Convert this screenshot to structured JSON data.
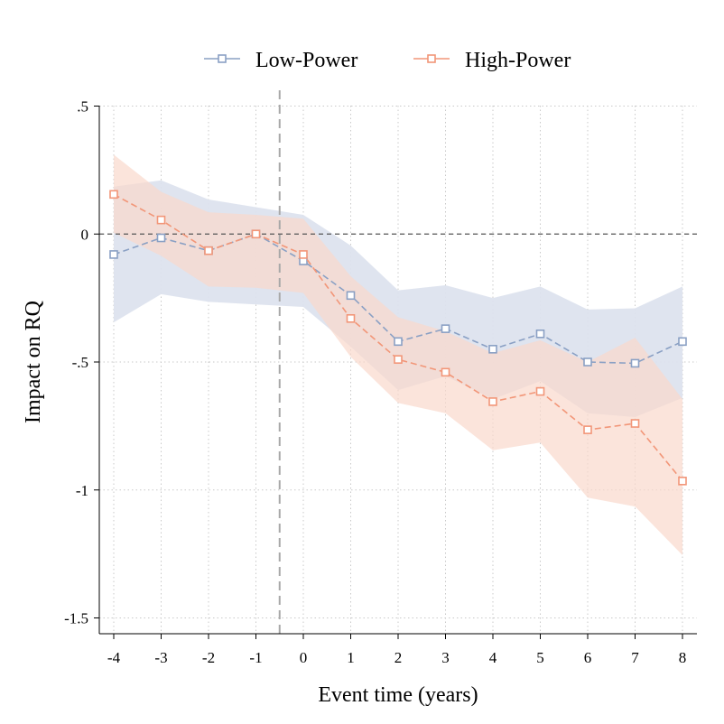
{
  "chart_data": {
    "type": "line",
    "x": [
      -4,
      -3,
      -2,
      -1,
      0,
      1,
      2,
      3,
      4,
      5,
      6,
      7,
      8
    ],
    "xlabel": "Event time (years)",
    "ylabel": "Impact on RQ",
    "xlim": [
      -4,
      8
    ],
    "ylim": [
      -1.5,
      0.5
    ],
    "x_ticks": [
      "-4",
      "-3",
      "-2",
      "-1",
      "0",
      "1",
      "2",
      "3",
      "4",
      "5",
      "6",
      "7",
      "8"
    ],
    "y_ticks": [
      {
        "value": 0.5,
        "label": ".5"
      },
      {
        "value": 0,
        "label": "0"
      },
      {
        "value": -0.5,
        "label": "-.5"
      },
      {
        "value": -1,
        "label": "-1"
      },
      {
        "value": -1.5,
        "label": "-1.5"
      }
    ],
    "reference_lines": {
      "horizontal_y": 0,
      "vertical_x": -0.5
    },
    "grid": true,
    "legend_position": "top",
    "series": [
      {
        "name": "Low-Power",
        "color": "#8aa0c4",
        "band_color": "#dde3ee",
        "marker": "hollow-square",
        "values": [
          -0.08,
          -0.015,
          -0.065,
          0.0,
          -0.105,
          -0.24,
          -0.42,
          -0.37,
          -0.45,
          -0.39,
          -0.5,
          -0.505,
          -0.42
        ],
        "ci_upper": [
          0.185,
          0.21,
          0.135,
          0.105,
          0.075,
          -0.045,
          -0.22,
          -0.2,
          -0.25,
          -0.205,
          -0.295,
          -0.29,
          -0.205
        ],
        "ci_lower": [
          -0.345,
          -0.235,
          -0.265,
          -0.275,
          -0.285,
          -0.44,
          -0.61,
          -0.555,
          -0.645,
          -0.575,
          -0.7,
          -0.715,
          -0.64
        ]
      },
      {
        "name": "High-Power",
        "color": "#f29678",
        "band_color": "#fad8cc",
        "marker": "hollow-square",
        "values": [
          0.155,
          0.055,
          -0.065,
          0.0,
          -0.08,
          -0.33,
          -0.49,
          -0.54,
          -0.655,
          -0.615,
          -0.765,
          -0.74,
          -0.965
        ],
        "ci_upper": [
          0.31,
          0.165,
          0.085,
          0.075,
          0.06,
          -0.165,
          -0.325,
          -0.38,
          -0.465,
          -0.415,
          -0.5,
          -0.405,
          -0.645
        ],
        "ci_lower": [
          0.005,
          -0.085,
          -0.205,
          -0.21,
          -0.23,
          -0.48,
          -0.66,
          -0.7,
          -0.845,
          -0.815,
          -1.03,
          -1.065,
          -1.255
        ]
      }
    ]
  }
}
